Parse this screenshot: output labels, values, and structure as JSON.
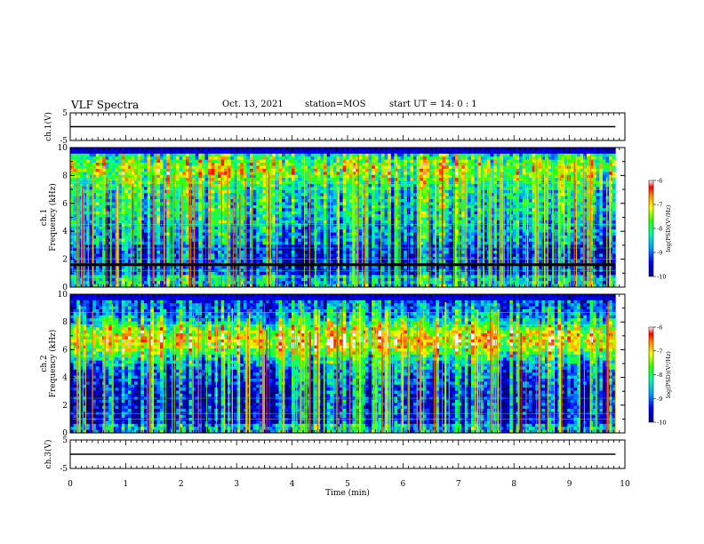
{
  "header": {
    "title": "VLF Spectra",
    "date": "Oct. 13, 2021",
    "station": "station=MOS",
    "start": "start  UT =   14: 0  : 1"
  },
  "chart_data": [
    {
      "type": "line",
      "panel": "ch1-waveform",
      "title": "",
      "xlabel": "",
      "ylabel": "ch.1(V)",
      "xlim": [
        0,
        10
      ],
      "ylim": [
        -5,
        5
      ],
      "yticks": [
        5,
        -5
      ],
      "series": [
        {
          "x": [
            0,
            9.83
          ],
          "y": [
            0,
            0
          ]
        }
      ]
    },
    {
      "type": "heatmap",
      "panel": "ch1-spectrogram",
      "title": "",
      "xlabel": "",
      "ylabel": "ch.1\nFrequency (kHz)",
      "xlim": [
        0,
        10
      ],
      "ylim": [
        0,
        10
      ],
      "yticks": [
        0,
        2,
        4,
        6,
        8,
        10
      ],
      "colorbar": {
        "label": "log(PSD)(V²/Hz)",
        "range": [
          -10,
          -6
        ],
        "ticks": [
          -6,
          -7,
          -8,
          -9,
          -10
        ]
      }
    },
    {
      "type": "heatmap",
      "panel": "ch2-spectrogram",
      "title": "",
      "xlabel": "",
      "ylabel": "ch.2\nFrequency (kHz)",
      "xlim": [
        0,
        10
      ],
      "ylim": [
        0,
        10
      ],
      "yticks": [
        0,
        2,
        4,
        6,
        8,
        10
      ],
      "colorbar": {
        "label": "log(PSD)(V²/Hz)",
        "range": [
          -10,
          -6
        ],
        "ticks": [
          -6,
          -7,
          -8,
          -9,
          -10
        ]
      }
    },
    {
      "type": "line",
      "panel": "ch3-waveform",
      "title": "",
      "xlabel": "Time (min)",
      "ylabel": "ch.3(V)",
      "xlim": [
        0,
        10
      ],
      "ylim": [
        -5,
        5
      ],
      "yticks": [
        5,
        -5
      ],
      "xticks": [
        0,
        1,
        2,
        3,
        4,
        5,
        6,
        7,
        8,
        9,
        10
      ],
      "series": [
        {
          "x": [
            0,
            9.83
          ],
          "y": [
            0,
            0
          ]
        }
      ]
    }
  ]
}
